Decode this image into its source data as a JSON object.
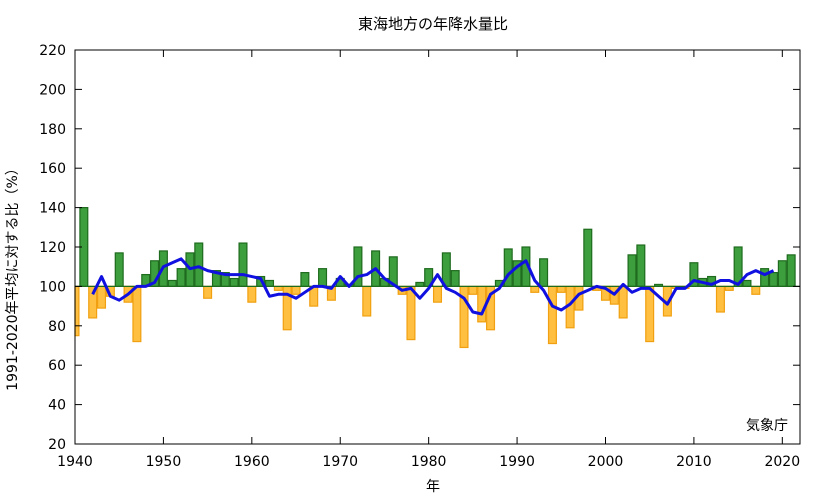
{
  "chart_data": {
    "type": "bar",
    "title": "東海地方の年降水量比",
    "xlabel": "年",
    "ylabel": "1991-2020年平均に対する比（%）",
    "credit": "気象庁",
    "baseline": 100,
    "xlim": [
      1940,
      2022
    ],
    "ylim": [
      20,
      220
    ],
    "xticks": [
      1940,
      1950,
      1960,
      1970,
      1980,
      1990,
      2000,
      2010,
      2020
    ],
    "yticks": [
      20,
      40,
      60,
      80,
      100,
      120,
      140,
      160,
      180,
      200,
      220
    ],
    "grid": false,
    "legend": "none",
    "colors": {
      "above_fill": "#3d9e3d",
      "above_stroke": "#1e6b1e",
      "below_fill": "#ffbf40",
      "below_stroke": "#f0a010",
      "trend": "#1010e0"
    },
    "series": [
      {
        "kind": "bars",
        "x": [
          1940,
          1941,
          1942,
          1943,
          1944,
          1945,
          1946,
          1947,
          1948,
          1949,
          1950,
          1951,
          1952,
          1953,
          1954,
          1955,
          1956,
          1957,
          1958,
          1959,
          1960,
          1961,
          1962,
          1963,
          1964,
          1965,
          1966,
          1967,
          1968,
          1969,
          1970,
          1971,
          1972,
          1973,
          1974,
          1975,
          1976,
          1977,
          1978,
          1979,
          1980,
          1981,
          1982,
          1983,
          1984,
          1985,
          1986,
          1987,
          1988,
          1989,
          1990,
          1991,
          1992,
          1993,
          1994,
          1995,
          1996,
          1997,
          1998,
          1999,
          2000,
          2001,
          2002,
          2003,
          2004,
          2005,
          2006,
          2007,
          2008,
          2009,
          2010,
          2011,
          2012,
          2013,
          2014,
          2015,
          2016,
          2017,
          2018,
          2019,
          2020,
          2021
        ],
        "values": [
          75,
          140,
          84,
          89,
          95,
          117,
          92,
          72,
          106,
          113,
          118,
          103,
          109,
          117,
          122,
          94,
          108,
          107,
          104,
          122,
          92,
          105,
          103,
          98,
          78,
          96,
          107,
          90,
          109,
          93,
          104,
          101,
          120,
          85,
          118,
          104,
          115,
          96,
          73,
          102,
          109,
          92,
          117,
          108,
          69,
          96,
          82,
          78,
          103,
          119,
          113,
          120,
          97,
          114,
          71,
          97,
          79,
          88,
          129,
          98,
          93,
          91,
          84,
          116,
          121,
          72,
          101,
          85,
          99,
          99,
          112,
          104,
          105,
          87,
          98,
          120,
          103,
          96,
          109,
          107,
          113,
          116
        ]
      },
      {
        "kind": "line",
        "name": "",
        "x": [
          1942,
          1943,
          1944,
          1945,
          1946,
          1947,
          1948,
          1949,
          1950,
          1951,
          1952,
          1953,
          1954,
          1955,
          1956,
          1957,
          1958,
          1959,
          1960,
          1961,
          1962,
          1963,
          1964,
          1965,
          1966,
          1967,
          1968,
          1969,
          1970,
          1971,
          1972,
          1973,
          1974,
          1975,
          1976,
          1977,
          1978,
          1979,
          1980,
          1981,
          1982,
          1983,
          1984,
          1985,
          1986,
          1987,
          1988,
          1989,
          1990,
          1991,
          1992,
          1993,
          1994,
          1995,
          1996,
          1997,
          1998,
          1999,
          2000,
          2001,
          2002,
          2003,
          2004,
          2005,
          2006,
          2007,
          2008,
          2009,
          2010,
          2011,
          2012,
          2013,
          2014,
          2015,
          2016,
          2017,
          2018,
          2019
        ],
        "values": [
          96,
          105,
          95,
          93,
          96,
          100,
          100,
          102,
          110,
          112,
          114,
          109,
          110,
          108,
          107,
          106,
          106,
          106,
          105,
          104,
          95,
          96,
          96,
          94,
          97,
          100,
          100,
          99,
          105,
          100,
          105,
          106,
          109,
          104,
          101,
          98,
          99,
          94,
          99,
          106,
          99,
          97,
          94,
          87,
          86,
          96,
          99,
          106,
          110,
          113,
          103,
          98,
          90,
          88,
          91,
          96,
          98,
          100,
          99,
          96,
          101,
          97,
          99,
          99,
          95,
          91,
          99,
          99,
          103,
          102,
          101,
          103,
          103,
          101,
          106,
          108,
          106,
          108
        ]
      }
    ]
  }
}
